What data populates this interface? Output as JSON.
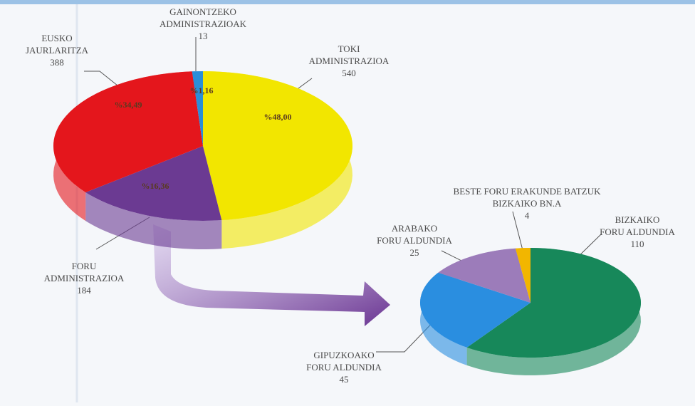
{
  "chart_data": [
    {
      "type": "pie",
      "categories": [
        [
          "TOKI",
          "ADMINISTRAZIOA"
        ],
        [
          "FORU",
          "ADMINISTRAZIOA"
        ],
        [
          "EUSKO",
          "JAURLARITZA"
        ],
        [
          "GAINONTZEKO",
          "ADMINISTRAZIOAK"
        ]
      ],
      "values": [
        540,
        184,
        388,
        13
      ],
      "percent_labels": [
        "%48,00",
        "%16,36",
        "%34,49",
        "%1,16"
      ],
      "colors": [
        "#f2e600",
        "#6b3a92",
        "#e4161c",
        "#2a8ed8"
      ]
    },
    {
      "type": "pie",
      "categories": [
        [
          "BIZKAIKO",
          "FORU ALDUNDIA"
        ],
        [
          "GIPUZKOAKO",
          "FORU ALDUNDIA"
        ],
        [
          "ARABAKO",
          "FORU ALDUNDIA"
        ],
        [
          "BESTE FORU ERAKUNDE BATZUK",
          "BIZKAIKO BN.A"
        ]
      ],
      "values": [
        110,
        45,
        25,
        4
      ],
      "colors": [
        "#17885a",
        "#2a8ee0",
        "#9c7cba",
        "#f2b600"
      ]
    }
  ]
}
